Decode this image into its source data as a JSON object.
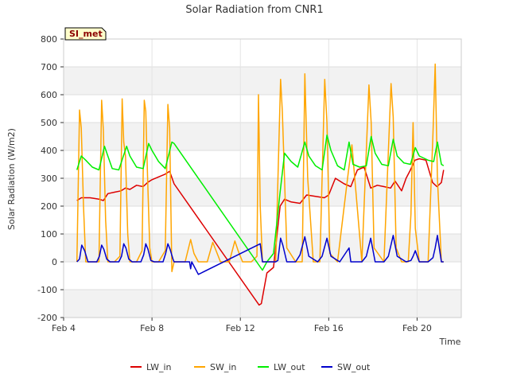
{
  "chart_data": {
    "type": "line",
    "title": "Solar Radiation from CNR1",
    "badge": "SI_met",
    "xlabel": "Time",
    "ylabel": "Solar Radiation (W/m2)",
    "xlim": [
      4.0,
      22.0
    ],
    "ylim": [
      -200,
      800
    ],
    "yticks": [
      -200,
      -100,
      0,
      100,
      200,
      300,
      400,
      500,
      600,
      700,
      800
    ],
    "xticks": [
      {
        "value": 4,
        "label": "Feb 4"
      },
      {
        "value": 8,
        "label": "Feb 8"
      },
      {
        "value": 12,
        "label": "Feb 12"
      },
      {
        "value": 16,
        "label": "Feb 16"
      },
      {
        "value": 20,
        "label": "Feb 20"
      }
    ],
    "grid": true,
    "legend_position": "bottom",
    "series": [
      {
        "name": "LW_in",
        "color": "#dd0000",
        "x": [
          4.6,
          4.8,
          5.2,
          5.6,
          5.8,
          6.0,
          6.3,
          6.6,
          6.8,
          7.0,
          7.3,
          7.6,
          7.8,
          8.0,
          8.3,
          8.6,
          8.8,
          9.0,
          12.85,
          12.95,
          13.2,
          13.5,
          13.8,
          14.0,
          14.3,
          14.7,
          15.0,
          15.4,
          15.8,
          16.0,
          16.3,
          16.7,
          17.0,
          17.3,
          17.6,
          17.9,
          18.2,
          18.5,
          18.8,
          19.0,
          19.3,
          19.5,
          19.7,
          19.9,
          20.1,
          20.4,
          20.7,
          20.9,
          21.1,
          21.2
        ],
        "y": [
          220,
          230,
          230,
          225,
          220,
          245,
          250,
          255,
          265,
          260,
          275,
          270,
          285,
          295,
          305,
          315,
          325,
          280,
          -155,
          -150,
          -40,
          -20,
          200,
          225,
          215,
          210,
          240,
          235,
          230,
          240,
          300,
          280,
          270,
          330,
          340,
          265,
          275,
          270,
          265,
          290,
          255,
          300,
          330,
          365,
          370,
          365,
          285,
          270,
          285,
          330
        ]
      },
      {
        "name": "SW_in",
        "color": "#ffa500",
        "x": [
          4.6,
          4.72,
          4.8,
          4.9,
          5.0,
          5.2,
          5.5,
          5.6,
          5.72,
          5.8,
          5.9,
          6.0,
          6.3,
          6.55,
          6.65,
          6.72,
          6.8,
          6.9,
          7.0,
          7.3,
          7.55,
          7.65,
          7.72,
          7.8,
          7.9,
          8.0,
          8.3,
          8.6,
          8.72,
          8.8,
          8.9,
          9.0,
          9.5,
          9.75,
          9.9,
          10.1,
          10.5,
          10.75,
          10.9,
          11.1,
          11.5,
          11.75,
          11.9,
          12.1,
          12.5,
          12.75,
          12.82,
          12.9,
          13.0,
          13.3,
          13.6,
          13.82,
          13.9,
          14.1,
          14.5,
          14.8,
          14.92,
          15.05,
          15.3,
          15.6,
          15.82,
          15.92,
          16.05,
          16.4,
          16.7,
          16.9,
          17.05,
          17.5,
          17.82,
          17.92,
          18.05,
          18.5,
          18.82,
          18.92,
          19.05,
          19.3,
          19.6,
          19.72,
          19.82,
          19.92,
          20.1,
          20.5,
          20.72,
          20.82,
          20.92,
          21.1,
          21.2
        ],
        "y": [
          0,
          545,
          480,
          200,
          0,
          0,
          0,
          0,
          580,
          470,
          150,
          0,
          0,
          20,
          585,
          430,
          380,
          100,
          0,
          0,
          40,
          580,
          540,
          300,
          50,
          0,
          0,
          40,
          565,
          480,
          -35,
          0,
          0,
          80,
          30,
          0,
          0,
          70,
          40,
          0,
          0,
          75,
          40,
          0,
          0,
          20,
          600,
          200,
          0,
          0,
          0,
          655,
          540,
          50,
          0,
          0,
          675,
          300,
          0,
          0,
          655,
          500,
          30,
          0,
          200,
          330,
          420,
          0,
          635,
          500,
          50,
          0,
          640,
          520,
          50,
          0,
          0,
          170,
          500,
          120,
          0,
          0,
          460,
          710,
          300,
          0,
          0
        ]
      },
      {
        "name": "LW_out",
        "color": "#00ee00",
        "x": [
          4.6,
          4.8,
          5.0,
          5.3,
          5.6,
          5.85,
          6.0,
          6.2,
          6.5,
          6.85,
          7.0,
          7.3,
          7.6,
          7.85,
          8.0,
          8.3,
          8.6,
          8.9,
          9.0,
          13.0,
          13.2,
          13.5,
          13.8,
          14.0,
          14.3,
          14.6,
          14.92,
          15.1,
          15.4,
          15.7,
          15.92,
          16.1,
          16.4,
          16.7,
          16.92,
          17.1,
          17.4,
          17.7,
          17.92,
          18.1,
          18.4,
          18.7,
          18.92,
          19.1,
          19.4,
          19.7,
          19.92,
          20.1,
          20.5,
          20.75,
          20.92,
          21.1,
          21.2
        ],
        "y": [
          330,
          380,
          365,
          340,
          330,
          415,
          380,
          335,
          330,
          415,
          380,
          340,
          335,
          425,
          400,
          360,
          335,
          430,
          425,
          -30,
          0,
          30,
          250,
          390,
          360,
          340,
          430,
          380,
          345,
          330,
          455,
          400,
          345,
          330,
          430,
          350,
          340,
          345,
          450,
          390,
          350,
          345,
          440,
          380,
          355,
          350,
          410,
          380,
          365,
          360,
          430,
          350,
          345
        ]
      },
      {
        "name": "SW_out",
        "color": "#0000cc",
        "x": [
          4.6,
          4.72,
          4.82,
          4.95,
          5.1,
          5.5,
          5.62,
          5.72,
          5.82,
          5.95,
          6.1,
          6.5,
          6.62,
          6.72,
          6.82,
          6.95,
          7.1,
          7.5,
          7.62,
          7.72,
          7.82,
          7.95,
          8.1,
          8.5,
          8.62,
          8.72,
          8.82,
          8.95,
          9.0,
          9.7,
          9.75,
          9.8,
          10.1,
          12.9,
          13.0,
          13.6,
          13.7,
          13.82,
          13.92,
          14.1,
          14.5,
          14.7,
          14.92,
          15.1,
          15.5,
          15.7,
          15.92,
          16.1,
          16.5,
          16.92,
          17.0,
          17.5,
          17.7,
          17.9,
          18.1,
          18.5,
          18.7,
          18.92,
          19.1,
          19.5,
          19.72,
          19.82,
          19.92,
          20.1,
          20.5,
          20.72,
          20.82,
          20.92,
          21.1,
          21.2
        ],
        "y": [
          0,
          10,
          60,
          40,
          0,
          0,
          20,
          60,
          45,
          10,
          0,
          0,
          20,
          65,
          50,
          10,
          0,
          0,
          25,
          65,
          45,
          5,
          0,
          0,
          30,
          65,
          45,
          10,
          0,
          0,
          -25,
          0,
          -45,
          65,
          0,
          0,
          5,
          85,
          60,
          0,
          0,
          25,
          90,
          20,
          0,
          20,
          85,
          20,
          0,
          50,
          0,
          0,
          20,
          85,
          0,
          0,
          20,
          95,
          20,
          0,
          5,
          20,
          40,
          0,
          0,
          15,
          50,
          95,
          0,
          0
        ]
      }
    ]
  }
}
